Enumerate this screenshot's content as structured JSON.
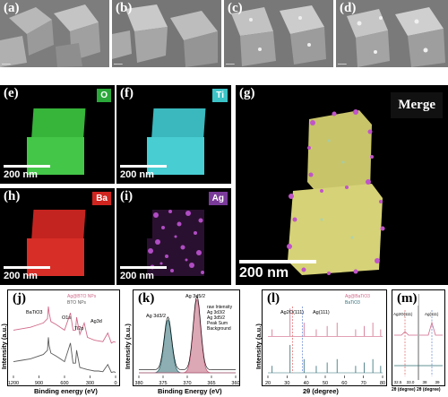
{
  "panels": {
    "a": "(a)",
    "b": "(b)",
    "c": "(c)",
    "d": "(d)",
    "e": "(e)",
    "f": "(f)",
    "g": "(g)",
    "h": "(h)",
    "i": "(i)",
    "j": "(j)",
    "k": "(k)",
    "l": "(l)",
    "m": "(m)"
  },
  "elements": {
    "e": "O",
    "f": "Ti",
    "h": "Ba",
    "i": "Ag"
  },
  "element_colors": {
    "O": "#2aa83a",
    "Ti": "#3cc3c8",
    "Ba": "#d0241f",
    "Ag": "#7a3a9a"
  },
  "scale_small": "200 nm",
  "scale_big": "200 nm",
  "merge_label": "Merge",
  "chart_data": [
    {
      "type": "line",
      "panel": "(j)",
      "ylabel": "Intensity (a.u.)",
      "xlabel": "Binding energy (eV)",
      "xticks": [
        "1200",
        "900",
        "600",
        "300",
        "0"
      ],
      "xlim": [
        1200,
        0
      ],
      "legend": [
        "Ag@BTO NPs",
        "BTO NPs"
      ],
      "annotations": [
        "BaTiO3",
        "O1s",
        "Ti2p",
        "Ag3d"
      ],
      "series": [
        {
          "name": "Ag@BTO NPs",
          "color": "#d06a8a",
          "x": [
            1200,
            1100,
            1000,
            900,
            850,
            800,
            790,
            780,
            760,
            700,
            650,
            600,
            531,
            500,
            470,
            458,
            420,
            368,
            330,
            290,
            250,
            200,
            150,
            92,
            50,
            20,
            0
          ],
          "y": [
            0.62,
            0.64,
            0.66,
            0.7,
            0.72,
            0.78,
            0.95,
            0.86,
            0.74,
            0.7,
            0.66,
            0.62,
            0.86,
            0.62,
            0.62,
            0.8,
            0.56,
            0.72,
            0.52,
            0.5,
            0.48,
            0.47,
            0.46,
            0.58,
            0.44,
            0.46,
            0.45
          ]
        },
        {
          "name": "BTO NPs",
          "color": "#5a5a5a",
          "x": [
            1200,
            1100,
            1000,
            900,
            850,
            800,
            790,
            780,
            760,
            700,
            650,
            600,
            531,
            500,
            470,
            458,
            420,
            330,
            290,
            250,
            200,
            150,
            92,
            50,
            20,
            0
          ],
          "y": [
            0.18,
            0.2,
            0.22,
            0.26,
            0.28,
            0.34,
            0.52,
            0.4,
            0.3,
            0.26,
            0.22,
            0.18,
            0.44,
            0.16,
            0.16,
            0.34,
            0.1,
            0.07,
            0.06,
            0.05,
            0.05,
            0.04,
            0.14,
            0.03,
            0.04,
            0.03
          ]
        }
      ]
    },
    {
      "type": "area",
      "panel": "(k)",
      "ylabel": "Intensity (a.u.)",
      "xlabel": "Binding Energy (eV)",
      "xticks": [
        "380",
        "375",
        "370",
        "365",
        "360"
      ],
      "xlim": [
        380,
        360
      ],
      "legend": [
        "raw Intensity",
        "Ag 3d3/2",
        "Ag 3d5/2",
        "Peak Sum",
        "Background"
      ],
      "peaks": [
        {
          "name": "Ag 3d3/2",
          "center": 374.0,
          "height": 0.72,
          "color": "#2f6b73"
        },
        {
          "name": "Ag 3d5/2",
          "center": 368.0,
          "height": 1.0,
          "color": "#c0607a"
        }
      ],
      "annotations": [
        "Ag 3d3/2",
        "Ag 3d5/2"
      ]
    },
    {
      "type": "line",
      "panel": "(l)",
      "ylabel": "Intensity (a.u.)",
      "xlabel": "2θ (degree)",
      "xticks": [
        "20",
        "30",
        "40",
        "50",
        "60",
        "70",
        "80"
      ],
      "xlim": [
        20,
        80
      ],
      "legend": [
        "Ag@BaTiO3",
        "BaTiO3"
      ],
      "annotations": [
        "Ag2O(111)",
        "Ag(111)"
      ],
      "peaks_deg": [
        22.2,
        31.6,
        38.9,
        45.3,
        51.0,
        56.2,
        65.9,
        70.4,
        74.9,
        79.0
      ],
      "series": [
        {
          "name": "Ag@BaTiO3",
          "color": "#d06a8a",
          "offset": 0.55
        },
        {
          "name": "BaTiO3",
          "color": "#2f6b73",
          "offset": 0.0
        }
      ]
    },
    {
      "type": "line",
      "panel": "(m)",
      "xlabel": "2θ (degree) 2θ (degree)",
      "xticks": [
        "32.5",
        "33.0",
        "38",
        "39"
      ],
      "annotations": [
        "Ag2O(111)",
        "Ag(111)"
      ]
    }
  ]
}
